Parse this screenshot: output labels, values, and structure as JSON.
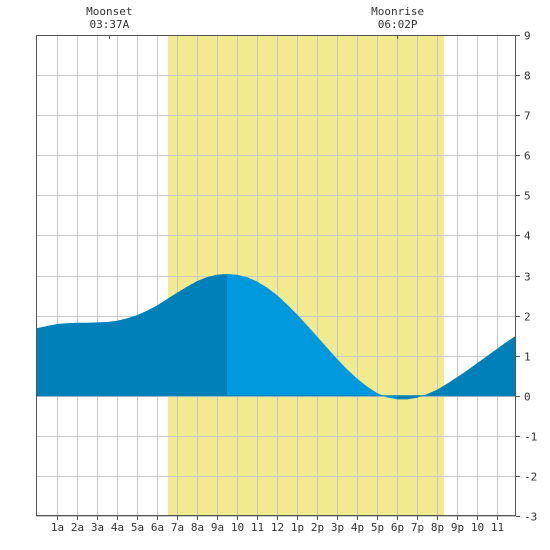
{
  "moon_events": [
    {
      "label": "Moonset",
      "time": "03:37A",
      "hour": 3.617
    },
    {
      "label": "Moonrise",
      "time": "06:02P",
      "hour": 18.033
    }
  ],
  "chart_data": {
    "type": "area",
    "x_tick_labels": [
      "1a",
      "2a",
      "3a",
      "4a",
      "5a",
      "6a",
      "7a",
      "8a",
      "9a",
      "10",
      "11",
      "12",
      "1p",
      "2p",
      "3p",
      "4p",
      "5p",
      "6p",
      "7p",
      "8p",
      "9p",
      "10",
      "11"
    ],
    "x_tick_hours": [
      1,
      2,
      3,
      4,
      5,
      6,
      7,
      8,
      9,
      10,
      11,
      12,
      13,
      14,
      15,
      16,
      17,
      18,
      19,
      20,
      21,
      22,
      23
    ],
    "xlim": [
      -0.05,
      23.95
    ],
    "ylim": [
      -3,
      9
    ],
    "y_ticks": [
      -3,
      -2,
      -1,
      0,
      1,
      2,
      3,
      4,
      5,
      6,
      7,
      8,
      9
    ],
    "daylight": {
      "start_hour": 6.55,
      "end_hour": 20.35
    },
    "high_tide_split_hour": 9.5,
    "series": [
      {
        "x": [
          -0.05,
          0.5,
          1,
          1.5,
          2,
          2.5,
          3,
          3.5,
          4,
          4.5,
          5,
          5.5,
          6,
          6.5,
          7,
          7.5,
          8,
          8.5,
          9,
          9.5,
          10,
          10.5,
          11,
          11.5,
          12,
          12.5,
          13,
          13.5,
          14,
          14.5,
          15,
          15.5,
          16,
          16.5,
          17,
          17.5,
          18,
          18.5,
          19,
          19.5,
          20,
          20.5,
          21,
          21.5,
          22,
          22.5,
          23,
          23.5,
          23.95
        ],
        "values": [
          1.68,
          1.74,
          1.79,
          1.81,
          1.82,
          1.82,
          1.83,
          1.84,
          1.87,
          1.93,
          2.01,
          2.12,
          2.25,
          2.41,
          2.57,
          2.72,
          2.86,
          2.96,
          3.02,
          3.04,
          3.02,
          2.96,
          2.85,
          2.7,
          2.51,
          2.28,
          2.03,
          1.76,
          1.48,
          1.2,
          0.92,
          0.66,
          0.43,
          0.23,
          0.07,
          -0.04,
          -0.09,
          -0.09,
          -0.05,
          0.04,
          0.15,
          0.3,
          0.46,
          0.63,
          0.81,
          0.99,
          1.17,
          1.35,
          1.5
        ]
      }
    ],
    "colors": {
      "daylight": "#f2ea8e",
      "tide_dark": "#0080b8",
      "tide_light": "#0099dd",
      "grid": "#c8c8c8",
      "frame": "#555555",
      "background": "#ffffff"
    }
  }
}
